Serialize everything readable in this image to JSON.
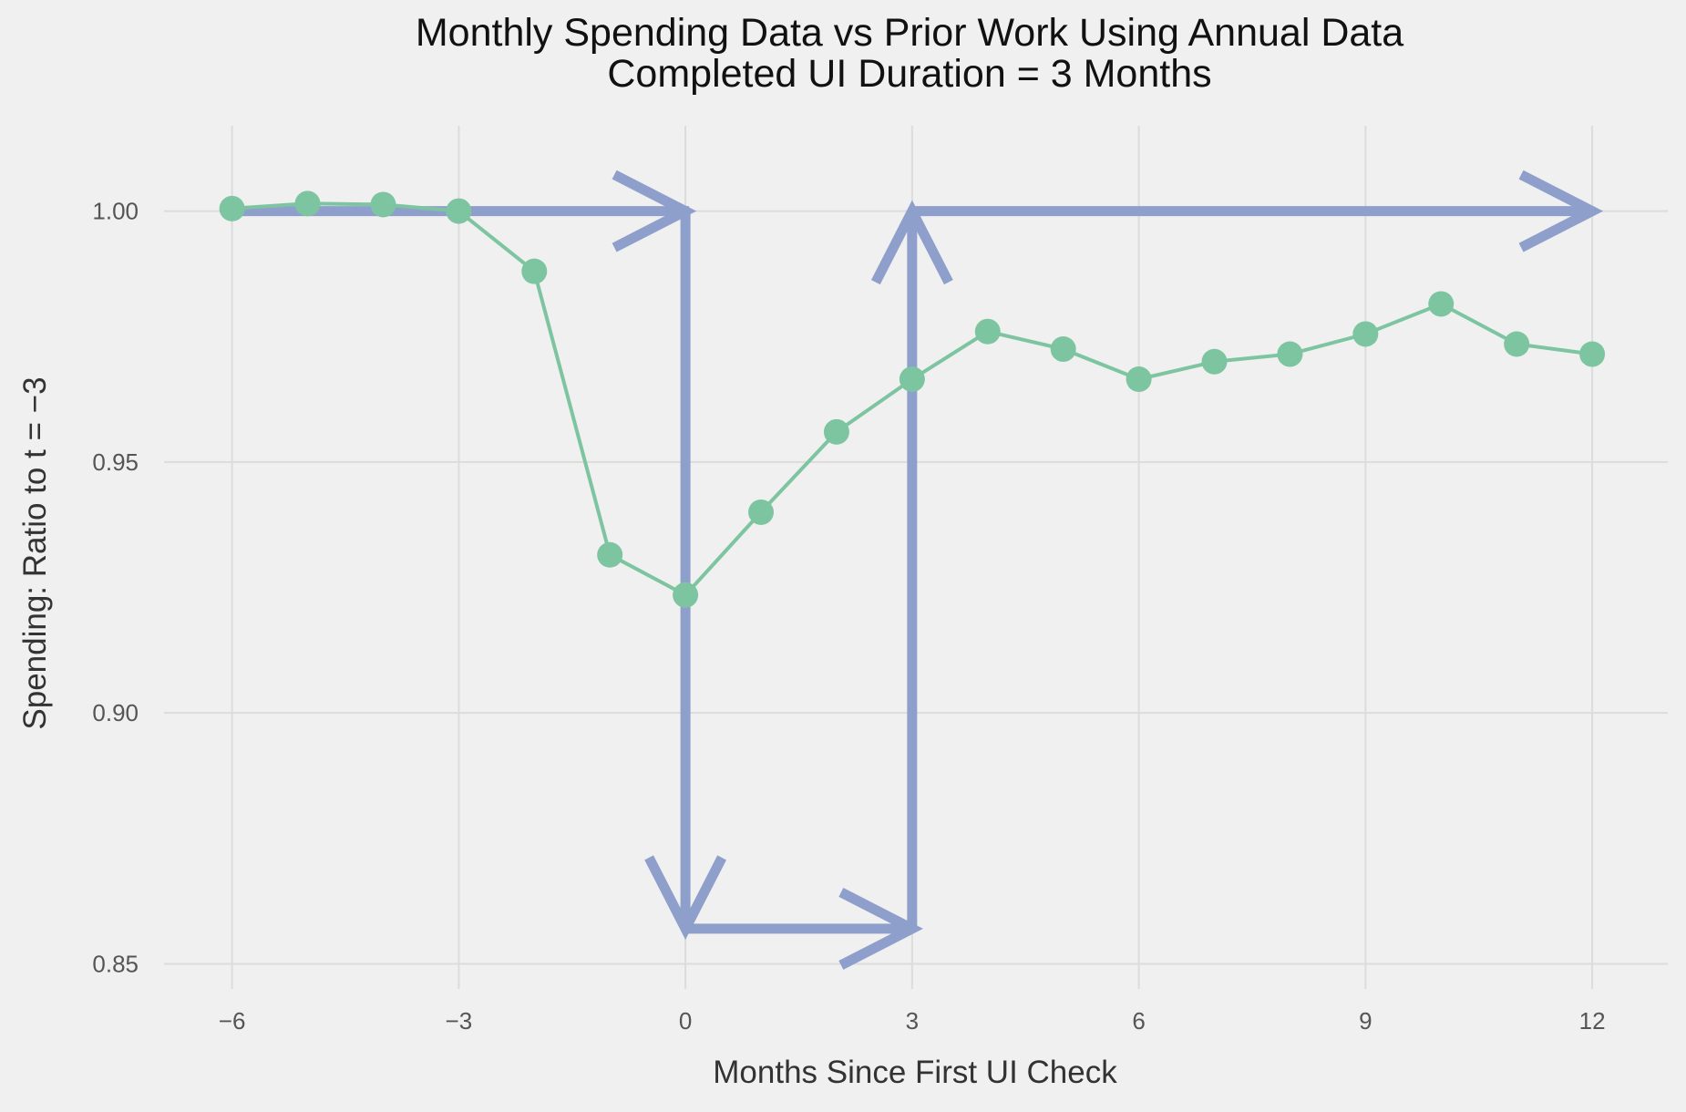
{
  "chart_data": {
    "type": "line",
    "title": "Monthly Spending Data vs Prior Work Using Annual Data",
    "subtitle": "Completed UI Duration = 3 Months",
    "xlabel": "Months Since First UI Check",
    "ylabel": "Spending: Ratio to t = −3",
    "xlim": [
      -6.9,
      13.0
    ],
    "ylim": [
      0.845,
      1.017
    ],
    "xticks": [
      -6,
      -3,
      0,
      3,
      6,
      9,
      12
    ],
    "xtick_labels": [
      "−6",
      "−3",
      "0",
      "3",
      "6",
      "9",
      "12"
    ],
    "yticks": [
      0.85,
      0.9,
      0.95,
      1.0
    ],
    "ytick_labels": [
      "0.85",
      "0.90",
      "0.95",
      "1.00"
    ],
    "grid": true,
    "series": [
      {
        "color": "#7dc5a0",
        "x": [
          -6,
          -5,
          -4,
          -3,
          -2,
          -1,
          0,
          1,
          2,
          3,
          4,
          5,
          6,
          7,
          8,
          9,
          10,
          11,
          12
        ],
        "y": [
          1.0005,
          1.0015,
          1.0013,
          1.0,
          0.988,
          0.9315,
          0.9235,
          0.94,
          0.956,
          0.9665,
          0.976,
          0.9725,
          0.9665,
          0.97,
          0.9715,
          0.9755,
          0.9815,
          0.9735,
          0.9715
        ]
      }
    ],
    "annotation_path": {
      "color": "#8f9fcb",
      "points": [
        [
          -6,
          1.0
        ],
        [
          0,
          1.0
        ],
        [
          0,
          0.857
        ],
        [
          3,
          0.857
        ],
        [
          3,
          1.0
        ],
        [
          12,
          1.0
        ]
      ]
    }
  }
}
